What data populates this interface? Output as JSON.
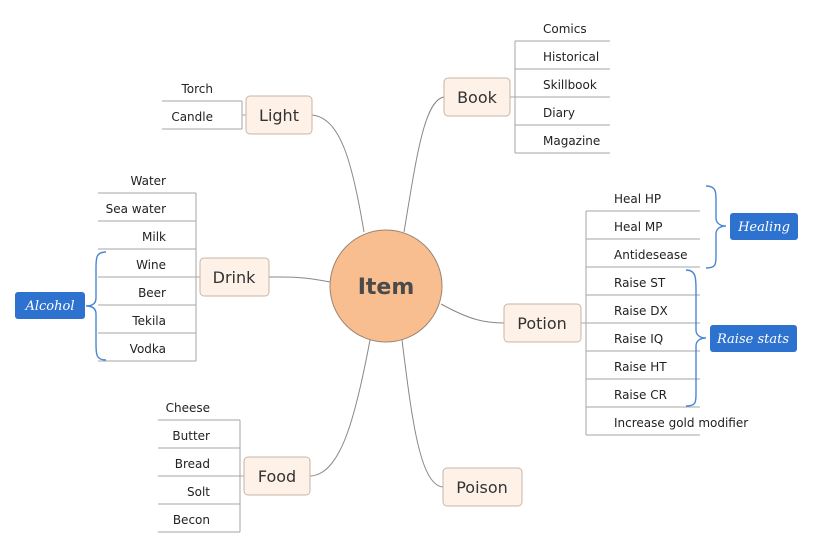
{
  "center": "Item",
  "colors": {
    "center_fill": "#f9be8f",
    "center_stroke": "#9a8474",
    "topic_fill": "#fdf1e8",
    "topic_stroke": "#c9b5a6",
    "line": "#888888",
    "leaf_line": "#a5a5a5",
    "callout_fill": "#2e72cf",
    "brace": "#4a86d6"
  },
  "topics": {
    "light": {
      "label": "Light",
      "leaves": [
        "Torch",
        "Candle"
      ]
    },
    "book": {
      "label": "Book",
      "leaves": [
        "Comics",
        "Historical",
        "Skillbook",
        "Diary",
        "Magazine"
      ]
    },
    "drink": {
      "label": "Drink",
      "leaves": [
        "Water",
        "Sea water",
        "Milk",
        "Wine",
        "Beer",
        "Tekila",
        "Vodka"
      ]
    },
    "potion": {
      "label": "Potion",
      "leaves": [
        "Heal HP",
        "Heal MP",
        "Antidesease",
        "Raise ST",
        "Raise DX",
        "Raise IQ",
        "Raise HT",
        "Raise CR",
        "Increase gold modifier"
      ]
    },
    "food": {
      "label": "Food",
      "leaves": [
        "Cheese",
        "Butter",
        "Bread",
        "Solt",
        "Becon"
      ]
    },
    "poison": {
      "label": "Poison",
      "leaves": []
    }
  },
  "callouts": {
    "alcohol": "Alcohol",
    "healing": "Healing",
    "raise_stats": "Raise stats"
  }
}
